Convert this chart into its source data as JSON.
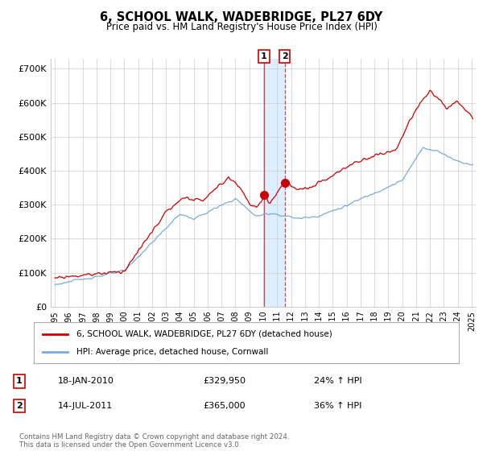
{
  "title": "6, SCHOOL WALK, WADEBRIDGE, PL27 6DY",
  "subtitle": "Price paid vs. HM Land Registry's House Price Index (HPI)",
  "legend_line1": "6, SCHOOL WALK, WADEBRIDGE, PL27 6DY (detached house)",
  "legend_line2": "HPI: Average price, detached house, Cornwall",
  "transaction1_date": "18-JAN-2010",
  "transaction1_price": "£329,950",
  "transaction1_hpi": "24% ↑ HPI",
  "transaction2_date": "14-JUL-2011",
  "transaction2_price": "£365,000",
  "transaction2_hpi": "36% ↑ HPI",
  "footer": "Contains HM Land Registry data © Crown copyright and database right 2024.\nThis data is licensed under the Open Government Licence v3.0.",
  "line1_color": "#cc0000",
  "line2_color": "#7aaadd",
  "shade_color": "#ddeeff",
  "background_color": "#ffffff",
  "grid_color": "#cccccc",
  "ylim": [
    0,
    730000
  ],
  "yticks": [
    0,
    100000,
    200000,
    300000,
    400000,
    500000,
    600000,
    700000
  ],
  "ytick_labels": [
    "£0",
    "£100K",
    "£200K",
    "£300K",
    "£400K",
    "£500K",
    "£600K",
    "£700K"
  ],
  "transaction1_x": 2010.05,
  "transaction1_y": 329950,
  "transaction2_x": 2011.54,
  "transaction2_y": 365000,
  "xlim_left": 1994.7,
  "xlim_right": 2025.3
}
